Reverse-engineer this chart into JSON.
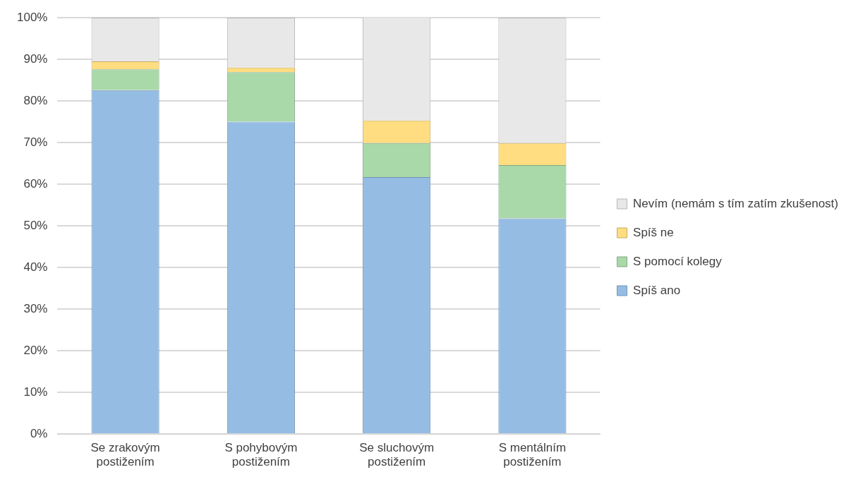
{
  "chart_data": {
    "type": "bar",
    "stacked": true,
    "categories": [
      "Se zrakovým postižením",
      "S pohybovým postižením",
      "Se sluchovým postižením",
      "S mentálním postižením"
    ],
    "series": [
      {
        "name": "Spíš ano",
        "color": "#95bde4",
        "values": [
          82.6,
          75.0,
          61.7,
          51.8
        ]
      },
      {
        "name": "S pomocí kolegy",
        "color": "#a9d8a9",
        "values": [
          5.0,
          11.9,
          8.2,
          12.8
        ]
      },
      {
        "name": "Spíš ne",
        "color": "#ffdd80",
        "values": [
          1.9,
          1.1,
          5.4,
          5.3
        ]
      },
      {
        "name": "Nevím (nemám s tím zatím zkušenost)",
        "color": "#e8e8e8",
        "values": [
          10.5,
          12.0,
          24.9,
          30.1
        ]
      }
    ],
    "ylim": [
      0,
      100
    ],
    "yticks": [
      {
        "value": 0,
        "label": "0%"
      },
      {
        "value": 10,
        "label": "10%"
      },
      {
        "value": 20,
        "label": "20%"
      },
      {
        "value": 30,
        "label": "30%"
      },
      {
        "value": 40,
        "label": "40%"
      },
      {
        "value": 50,
        "label": "50%"
      },
      {
        "value": 60,
        "label": "60%"
      },
      {
        "value": 70,
        "label": "70%"
      },
      {
        "value": 80,
        "label": "80%"
      },
      {
        "value": 90,
        "label": "90%"
      },
      {
        "value": 100,
        "label": "100%"
      }
    ],
    "grid": "y",
    "legend": "right"
  }
}
